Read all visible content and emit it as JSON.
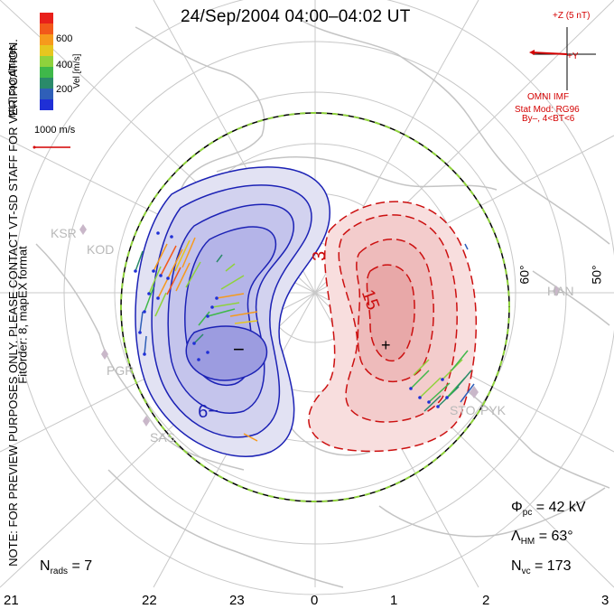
{
  "title": "24/Sep/2004 04:00–04:02 UT",
  "side_note": {
    "line1": "NOTE: FOR PREVIEW PURPOSES ONLY. PLEASE CONTACT VT-SD STAFF FOR VERIFICATION.",
    "line2": "FitOrder: 8, mapEX format"
  },
  "coordinates_label": "MLT coordinates",
  "colorbar": {
    "label": "Vel [m/s]",
    "ticks": [
      "600",
      "400",
      "200"
    ],
    "colors": [
      "#e8201a",
      "#f2591a",
      "#f69a1c",
      "#e6c61f",
      "#8fd23c",
      "#3fb84a",
      "#2a8a6a",
      "#2f5fb8",
      "#1f2fd6"
    ]
  },
  "scale_vector_label": "1000 m/s",
  "imf": {
    "z_label": "+Z (5 nT)",
    "y_label": "+Y",
    "source": "OMNI IMF",
    "model": "Stat Mod: RG96",
    "condition": "By–, 4<BT<6"
  },
  "contour_labels": {
    "neg": "−9",
    "pos3": "3",
    "pos15": "15"
  },
  "extrema_markers": {
    "min": "−",
    "max": "+"
  },
  "stations": [
    "KSR",
    "KOD",
    "PGR",
    "SAS",
    "STO",
    "PYK",
    "HAN"
  ],
  "lat_labels": [
    "60°",
    "50°"
  ],
  "mlt_ticks": [
    "21",
    "22",
    "23",
    "0",
    "1",
    "2",
    "3"
  ],
  "stats": {
    "phi_symbol": "Φ",
    "phi_sub": "pc",
    "phi_value": "= 42 kV",
    "lambda_symbol": "Λ",
    "lambda_sub": "HM",
    "lambda_value": "= 63°",
    "nvc_symbol": "N",
    "nvc_sub": "vc",
    "nvc_value": "= 173",
    "nrads_symbol": "N",
    "nrads_sub": "rads",
    "nrads_value": "= 7"
  }
}
